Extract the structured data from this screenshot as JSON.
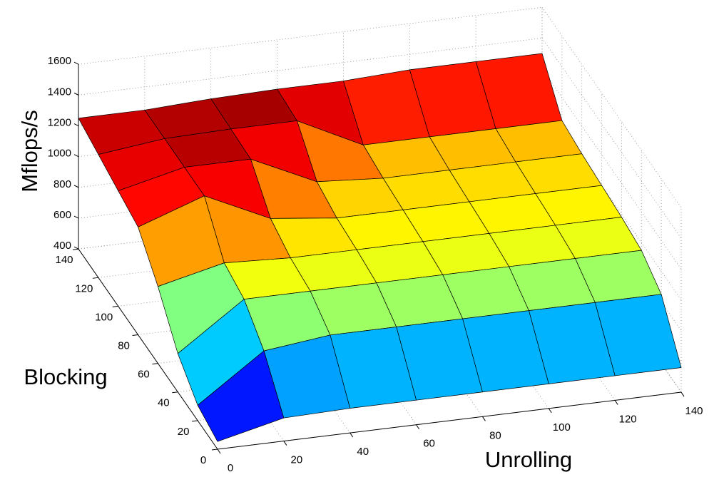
{
  "chart_data": {
    "type": "surface",
    "xlabel": "Unrolling",
    "ylabel": "Blocking",
    "zlabel": "Mflops/s",
    "x": [
      0,
      20,
      40,
      60,
      80,
      100,
      120,
      140
    ],
    "y": [
      0,
      20,
      40,
      60,
      80,
      100,
      120,
      140
    ],
    "z": [
      [
        450,
        550,
        560,
        560,
        560,
        560,
        560,
        560
      ],
      [
        500,
        800,
        850,
        850,
        850,
        850,
        850,
        850
      ],
      [
        650,
        950,
        950,
        950,
        950,
        950,
        950,
        950
      ],
      [
        900,
        1000,
        980,
        980,
        980,
        980,
        980,
        980
      ],
      [
        1100,
        1250,
        1050,
        1000,
        1000,
        1000,
        1000,
        1000
      ],
      [
        1150,
        1250,
        1250,
        1050,
        1020,
        1020,
        1020,
        1020
      ],
      [
        1200,
        1250,
        1260,
        1260,
        1050,
        1050,
        1050,
        1050
      ],
      [
        1250,
        1250,
        1270,
        1280,
        1280,
        1300,
        1300,
        1300
      ]
    ],
    "xlim": [
      0,
      140
    ],
    "ylim": [
      0,
      140
    ],
    "zlim": [
      400,
      1600
    ],
    "xticks": [
      0,
      20,
      40,
      60,
      80,
      100,
      120,
      140
    ],
    "yticks": [
      0,
      20,
      40,
      60,
      80,
      100,
      120,
      140
    ],
    "zticks": [
      400,
      600,
      800,
      1000,
      1200,
      1400,
      1600
    ],
    "grid": true,
    "colormap": "jet",
    "edgecolor": "#000000"
  }
}
